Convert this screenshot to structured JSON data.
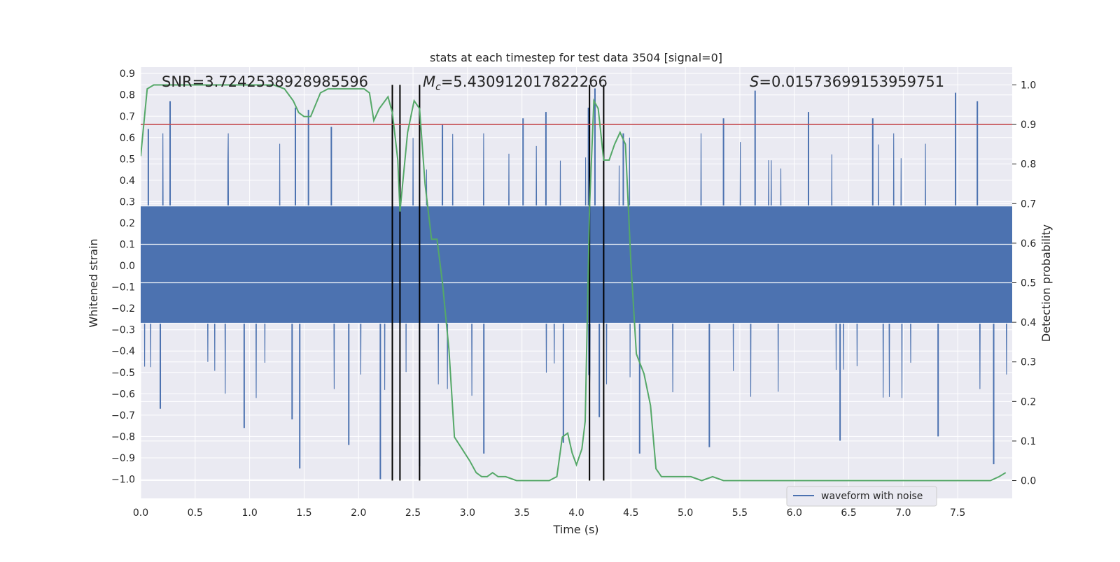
{
  "chart_data": {
    "type": "line",
    "title": "stats at each timestep for test data 3504 [signal=0]",
    "xlabel": "Time (s)",
    "ylabel": "Whitened strain",
    "y2label": "Detection probability",
    "xlim": [
      0.0,
      8.0
    ],
    "ylim": [
      -1.09,
      0.93
    ],
    "y2lim": [
      -0.045,
      1.045
    ],
    "xticks": [
      "0.0",
      "0.5",
      "1.0",
      "1.5",
      "2.0",
      "2.5",
      "3.0",
      "3.5",
      "4.0",
      "4.5",
      "5.0",
      "5.5",
      "6.0",
      "6.5",
      "7.0",
      "7.5"
    ],
    "yticks": [
      "0.9",
      "0.8",
      "0.7",
      "0.6",
      "0.5",
      "0.4",
      "0.3",
      "0.2",
      "0.1",
      "0.0",
      "−0.1",
      "−0.2",
      "−0.3",
      "−0.4",
      "−0.5",
      "−0.6",
      "−0.7",
      "−0.8",
      "−0.9",
      "−1.0"
    ],
    "y2ticks": [
      "0.0",
      "0.1",
      "0.2",
      "0.3",
      "0.4",
      "0.5",
      "0.6",
      "0.7",
      "0.8",
      "0.9",
      "1.0"
    ],
    "annotations": {
      "snr_text": "SNR=3.7242538928985596",
      "mc_symbol": "M",
      "mc_subscript": "c",
      "mc_value": "=5.430912017822266",
      "s_symbol": "S",
      "s_value": "=0.01573699153959751"
    },
    "threshold_value": 0.9,
    "vertical_markers": [
      2.31,
      2.38,
      2.56,
      4.12,
      4.25
    ],
    "legend": {
      "entries": [
        "waveform with noise"
      ],
      "placement": "lower-right"
    },
    "series": [
      {
        "name": "waveform with noise",
        "axis": "left",
        "style": "dense-noise",
        "band": [
          -0.27,
          0.28
        ],
        "seed": 3504,
        "peaks_up": [
          [
            0.27,
            0.77
          ],
          [
            0.07,
            0.64
          ],
          [
            1.42,
            0.74
          ],
          [
            1.54,
            0.73
          ],
          [
            2.31,
            0.73
          ],
          [
            3.72,
            0.72
          ],
          [
            4.11,
            0.74
          ],
          [
            4.17,
            0.83
          ],
          [
            5.64,
            0.82
          ],
          [
            7.68,
            0.77
          ],
          [
            7.48,
            0.81
          ],
          [
            6.72,
            0.69
          ],
          [
            6.13,
            0.72
          ],
          [
            5.35,
            0.69
          ],
          [
            3.51,
            0.69
          ],
          [
            1.75,
            0.65
          ],
          [
            4.43,
            0.62
          ],
          [
            2.77,
            0.66
          ]
        ],
        "peaks_down": [
          [
            2.2,
            -1.0
          ],
          [
            2.56,
            -0.94
          ],
          [
            1.46,
            -0.95
          ],
          [
            0.95,
            -0.76
          ],
          [
            1.91,
            -0.84
          ],
          [
            3.15,
            -0.88
          ],
          [
            4.58,
            -0.88
          ],
          [
            5.22,
            -0.85
          ],
          [
            7.83,
            -0.93
          ],
          [
            0.18,
            -0.67
          ],
          [
            3.88,
            -0.83
          ],
          [
            6.42,
            -0.82
          ],
          [
            4.21,
            -0.71
          ],
          [
            7.32,
            -0.8
          ],
          [
            1.39,
            -0.72
          ]
        ]
      },
      {
        "name": "detection probability",
        "axis": "right",
        "x": [
          0.0,
          0.06,
          0.12,
          0.2,
          0.3,
          0.5,
          0.7,
          0.9,
          1.1,
          1.22,
          1.32,
          1.4,
          1.45,
          1.5,
          1.56,
          1.65,
          1.72,
          1.8,
          1.9,
          2.0,
          2.05,
          2.1,
          2.14,
          2.19,
          2.27,
          2.31,
          2.36,
          2.38,
          2.45,
          2.51,
          2.56,
          2.61,
          2.67,
          2.72,
          2.77,
          2.83,
          2.88,
          2.95,
          3.02,
          3.08,
          3.13,
          3.18,
          3.23,
          3.28,
          3.35,
          3.45,
          3.6,
          3.75,
          3.82,
          3.87,
          3.92,
          3.96,
          4.0,
          4.05,
          4.08,
          4.12,
          4.16,
          4.2,
          4.25,
          4.3,
          4.35,
          4.4,
          4.45,
          4.5,
          4.55,
          4.62,
          4.68,
          4.73,
          4.78,
          4.83,
          4.88,
          4.95,
          5.05,
          5.15,
          5.25,
          5.35,
          5.45,
          5.6,
          5.8,
          6.1,
          6.3,
          6.6,
          6.9,
          7.2,
          7.5,
          7.8,
          7.88,
          7.94
        ],
        "y": [
          0.82,
          0.99,
          1.0,
          1.0,
          1.0,
          1.0,
          1.0,
          1.0,
          1.0,
          1.0,
          0.99,
          0.96,
          0.93,
          0.92,
          0.92,
          0.98,
          0.99,
          0.99,
          0.99,
          0.99,
          0.99,
          0.98,
          0.91,
          0.94,
          0.97,
          0.93,
          0.81,
          0.68,
          0.88,
          0.96,
          0.94,
          0.75,
          0.61,
          0.61,
          0.5,
          0.33,
          0.11,
          0.08,
          0.05,
          0.02,
          0.01,
          0.01,
          0.02,
          0.01,
          0.01,
          0.0,
          0.0,
          0.0,
          0.01,
          0.11,
          0.12,
          0.07,
          0.04,
          0.08,
          0.15,
          0.69,
          0.96,
          0.94,
          0.81,
          0.81,
          0.85,
          0.88,
          0.85,
          0.55,
          0.32,
          0.27,
          0.19,
          0.03,
          0.01,
          0.01,
          0.01,
          0.01,
          0.01,
          0.0,
          0.01,
          0.0,
          0.0,
          0.0,
          0.0,
          0.0,
          0.0,
          0.0,
          0.0,
          0.0,
          0.0,
          0.0,
          0.01,
          0.02
        ]
      }
    ]
  }
}
